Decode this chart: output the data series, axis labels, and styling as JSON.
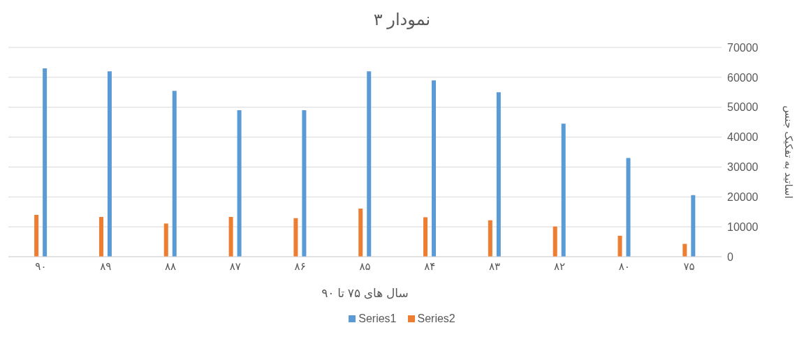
{
  "chart_data": {
    "type": "bar",
    "title": "نمودار ۳",
    "xlabel": "سال های ۷۵ تا ۹۰",
    "ylabel": "اساتید به تفکیک جنس",
    "categories": [
      "۹۰",
      "۸۹",
      "۸۸",
      "۸۷",
      "۸۶",
      "۸۵",
      "۸۴",
      "۸۳",
      "۸۲",
      "۸۰",
      "۷۵"
    ],
    "series": [
      {
        "name": "Series1",
        "color": "#5b9bd5",
        "values": [
          63000,
          62000,
          55500,
          49000,
          49000,
          62000,
          59000,
          55000,
          44500,
          33000,
          20600
        ]
      },
      {
        "name": "Series2",
        "color": "#ed7d31",
        "values": [
          14000,
          13300,
          11100,
          13300,
          12900,
          16100,
          13200,
          12200,
          10100,
          7000,
          4300
        ]
      }
    ],
    "ylim": [
      0,
      70000
    ],
    "yticks": [
      0,
      10000,
      20000,
      30000,
      40000,
      50000,
      60000,
      70000
    ],
    "grid": "y",
    "legend": "bottom"
  }
}
